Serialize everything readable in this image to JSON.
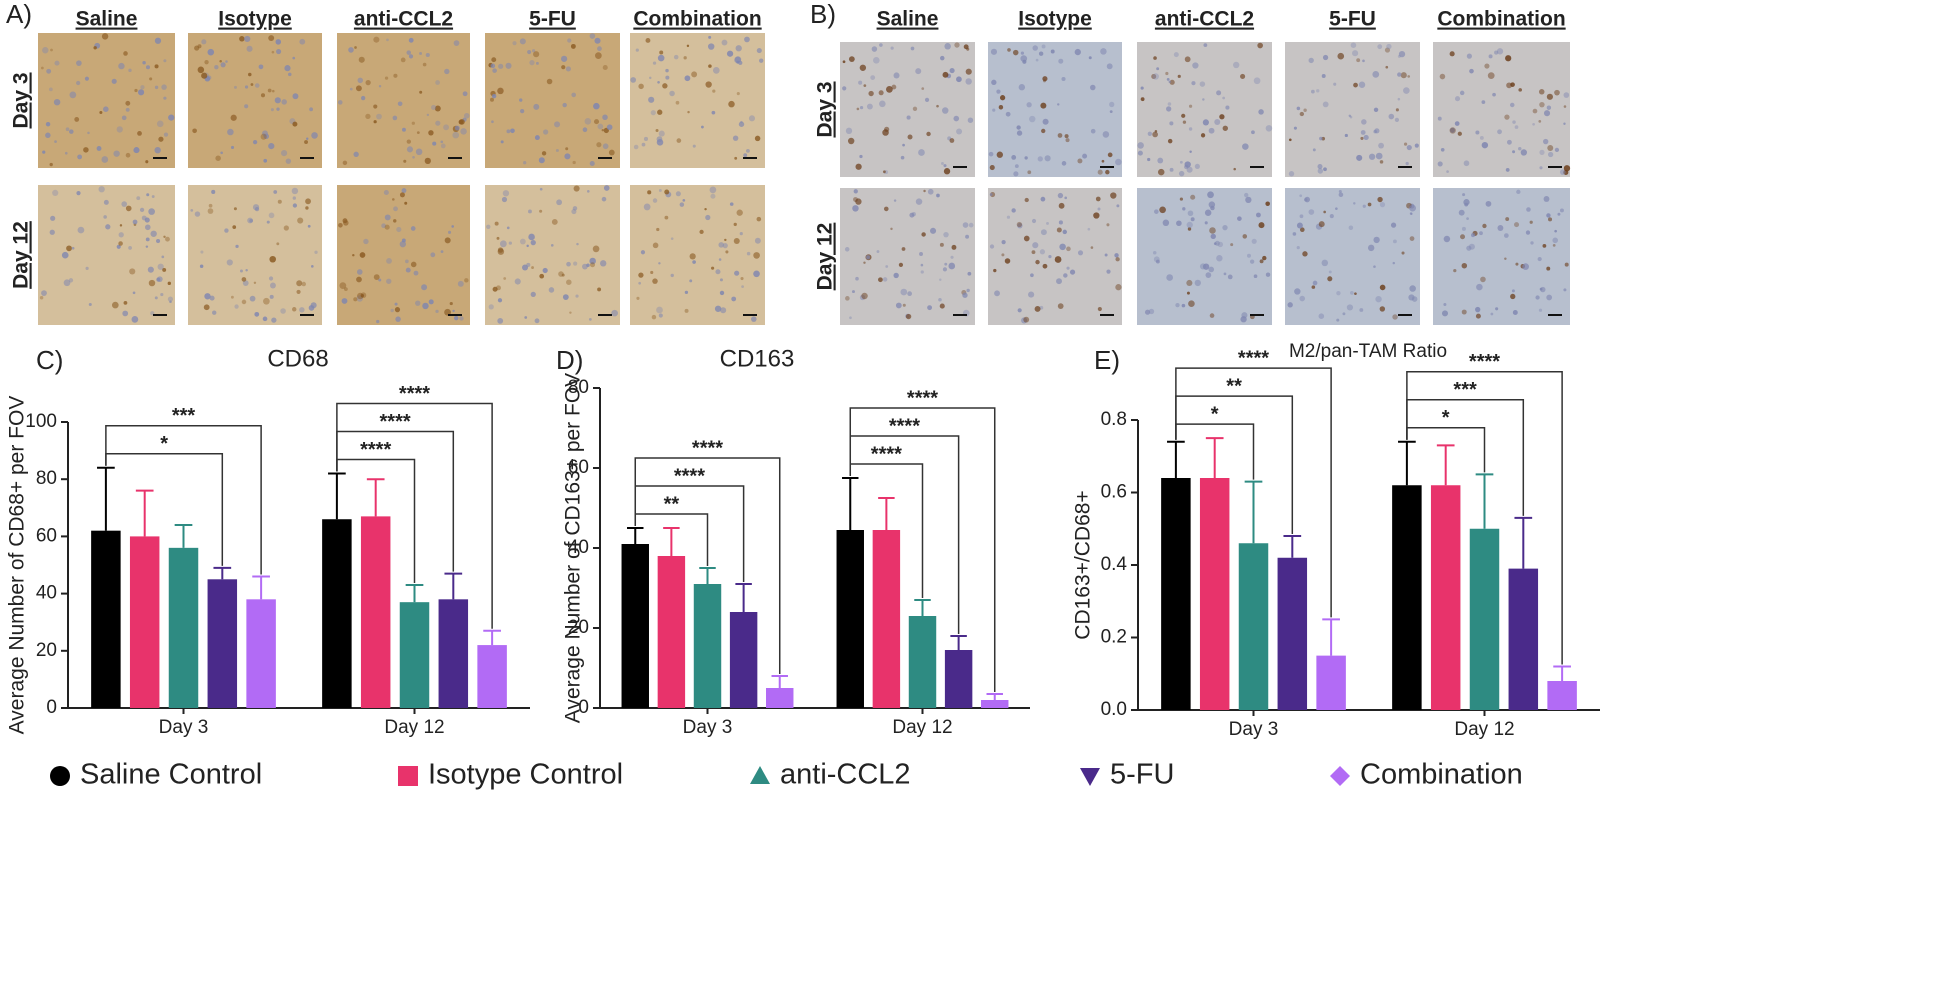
{
  "image_panels": [
    {
      "label": "A)",
      "columns": [
        "Saline",
        "Isotype",
        "anti-CCL2",
        "5-FU",
        "Combination"
      ],
      "rows": [
        "Day 3",
        "Day 12"
      ]
    },
    {
      "label": "B)",
      "columns": [
        "Saline",
        "Isotype",
        "anti-CCL2",
        "5-FU",
        "Combination"
      ],
      "rows": [
        "Day 3",
        "Day 12"
      ]
    }
  ],
  "legend": {
    "entries": [
      {
        "name": "Saline Control",
        "color": "#000000",
        "marker": "circle"
      },
      {
        "name": "Isotype Control",
        "color": "#e8336b",
        "marker": "square"
      },
      {
        "name": "anti-CCL2",
        "color": "#2e8b82",
        "marker": "triangle-up"
      },
      {
        "name": "5-FU",
        "color": "#4a2a8a",
        "marker": "triangle-down"
      },
      {
        "name": "Combination",
        "color": "#b26bf5",
        "marker": "diamond"
      }
    ]
  },
  "chart_data": [
    {
      "type": "bar",
      "panel_label": "C)",
      "title": "CD68",
      "y_label": "Average Number of CD68+ per FOV",
      "categories": [
        "Day 3",
        "Day 12"
      ],
      "ylim": [
        0,
        100
      ],
      "yticks": [
        0,
        20,
        40,
        60,
        80,
        100
      ],
      "series": [
        {
          "values": [
            62,
            66
          ],
          "errors": [
            22,
            16
          ]
        },
        {
          "values": [
            60,
            67
          ],
          "errors": [
            16,
            13
          ]
        },
        {
          "values": [
            56,
            37
          ],
          "errors": [
            8,
            6
          ]
        },
        {
          "values": [
            45,
            38
          ],
          "errors": [
            4,
            9
          ]
        },
        {
          "values": [
            38,
            22
          ],
          "errors": [
            8,
            5
          ]
        }
      ],
      "annotations": [
        {
          "category": 0,
          "from": 0,
          "to": 3,
          "label": "*"
        },
        {
          "category": 0,
          "from": 0,
          "to": 4,
          "label": "***"
        },
        {
          "category": 1,
          "from": 0,
          "to": 2,
          "label": "****"
        },
        {
          "category": 1,
          "from": 0,
          "to": 3,
          "label": "****"
        },
        {
          "category": 1,
          "from": 0,
          "to": 4,
          "label": "****"
        }
      ]
    },
    {
      "type": "bar",
      "panel_label": "D)",
      "title": "CD163",
      "y_label": "Average Number of CD163+ per FOV",
      "categories": [
        "Day 3",
        "Day 12"
      ],
      "ylim": [
        0,
        80
      ],
      "yticks": [
        0,
        20,
        40,
        60,
        80
      ],
      "series": [
        {
          "values": [
            41,
            44.5
          ],
          "errors": [
            4,
            13
          ]
        },
        {
          "values": [
            38,
            44.5
          ],
          "errors": [
            7,
            8
          ]
        },
        {
          "values": [
            31,
            23
          ],
          "errors": [
            4,
            4
          ]
        },
        {
          "values": [
            24,
            14.5
          ],
          "errors": [
            7,
            3.5
          ]
        },
        {
          "values": [
            5,
            2
          ],
          "errors": [
            3,
            1.5
          ]
        }
      ],
      "annotations": [
        {
          "category": 0,
          "from": 0,
          "to": 2,
          "label": "**"
        },
        {
          "category": 0,
          "from": 0,
          "to": 3,
          "label": "****"
        },
        {
          "category": 0,
          "from": 0,
          "to": 4,
          "label": "****"
        },
        {
          "category": 1,
          "from": 0,
          "to": 2,
          "label": "****"
        },
        {
          "category": 1,
          "from": 0,
          "to": 3,
          "label": "****"
        },
        {
          "category": 1,
          "from": 0,
          "to": 4,
          "label": "****"
        }
      ]
    },
    {
      "type": "bar",
      "panel_label": "E)",
      "title": "M2/pan-TAM Ratio",
      "y_label": "CD163+/CD68+",
      "categories": [
        "Day 3",
        "Day 12"
      ],
      "ylim": [
        0,
        0.8
      ],
      "yticks": [
        {
          "value": 0,
          "label": "0.0"
        },
        0.2,
        0.4,
        0.6,
        0.8
      ],
      "series": [
        {
          "values": [
            0.64,
            0.62
          ],
          "errors": [
            0.1,
            0.12
          ]
        },
        {
          "values": [
            0.64,
            0.62
          ],
          "errors": [
            0.11,
            0.11
          ]
        },
        {
          "values": [
            0.46,
            0.5
          ],
          "errors": [
            0.17,
            0.15
          ]
        },
        {
          "values": [
            0.42,
            0.39
          ],
          "errors": [
            0.06,
            0.14
          ]
        },
        {
          "values": [
            0.15,
            0.08
          ],
          "errors": [
            0.1,
            0.04
          ]
        }
      ],
      "annotations": [
        {
          "category": 0,
          "from": 0,
          "to": 2,
          "label": "*"
        },
        {
          "category": 0,
          "from": 0,
          "to": 3,
          "label": "**"
        },
        {
          "category": 0,
          "from": 0,
          "to": 4,
          "label": "****"
        },
        {
          "category": 1,
          "from": 0,
          "to": 2,
          "label": "*"
        },
        {
          "category": 1,
          "from": 0,
          "to": 3,
          "label": "***"
        },
        {
          "category": 1,
          "from": 0,
          "to": 4,
          "label": "****"
        }
      ]
    }
  ]
}
